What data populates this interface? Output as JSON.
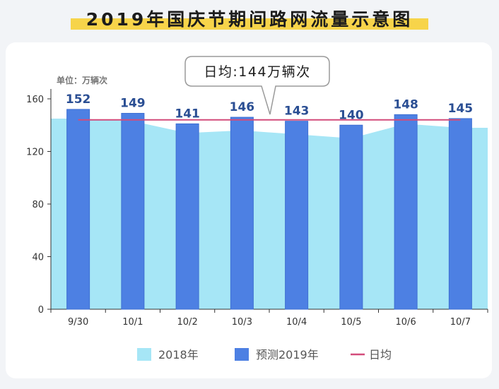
{
  "title": "2019年国庆节期间路网流量示意图",
  "unit_label": "单位：万辆次",
  "callout": "日均:144万辆次",
  "colors": {
    "area_2018": "#a6e6f6",
    "bar_2019": "#4d80e3",
    "bar_2019_edge": "#3f6fd2",
    "avg_line": "#d34c7b",
    "value_label": "#2a4e93",
    "title_highlight": "#f7d44a"
  },
  "chart_data": {
    "type": "bar",
    "categories": [
      "9/30",
      "10/1",
      "10/2",
      "10/3",
      "10/4",
      "10/5",
      "10/6",
      "10/7"
    ],
    "series": [
      {
        "name": "2018年",
        "type": "area",
        "values": [
          145,
          143,
          134,
          136,
          133,
          130,
          141,
          138
        ]
      },
      {
        "name": "预测2019年",
        "type": "bar",
        "values": [
          152,
          149,
          141,
          146,
          143,
          140,
          148,
          145
        ]
      },
      {
        "name": "日均",
        "type": "line",
        "values": [
          144,
          144,
          144,
          144,
          144,
          144,
          144,
          144
        ]
      }
    ],
    "data_labels": [
      "152",
      "149",
      "141",
      "146",
      "143",
      "140",
      "148",
      "145"
    ],
    "ylim": [
      0,
      160
    ],
    "yticks": [
      0,
      40,
      80,
      120,
      160
    ],
    "xlabel": "",
    "ylabel": "",
    "grid": false,
    "legend_position": "bottom"
  }
}
